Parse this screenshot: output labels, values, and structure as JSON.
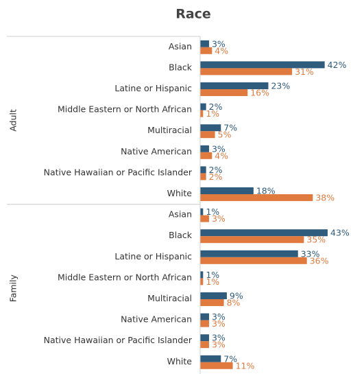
{
  "chart_data": {
    "type": "hbar",
    "title": "Race",
    "groups": [
      {
        "name": "Adult",
        "categories": [
          "Asian",
          "Black",
          "Latine or Hispanic",
          "Middle Eastern or North African",
          "Multiracial",
          "Native American",
          "Native Hawaiian or Pacific Islander",
          "White"
        ],
        "series": [
          {
            "color": "#2f5b7c",
            "values": [
              3,
              42,
              23,
              2,
              7,
              3,
              2,
              18
            ],
            "value_labels": [
              "3%",
              "42%",
              "23%",
              "2%",
              "7%",
              "3%",
              "2%",
              "18%"
            ]
          },
          {
            "color": "#e07a3f",
            "values": [
              4,
              31,
              16,
              1,
              5,
              4,
              2,
              38
            ],
            "value_labels": [
              "4%",
              "31%",
              "16%",
              "1%",
              "5%",
              "4%",
              "2%",
              "38%"
            ]
          }
        ]
      },
      {
        "name": "Family",
        "categories": [
          "Asian",
          "Black",
          "Latine or Hispanic",
          "Middle Eastern or North African",
          "Multiracial",
          "Native American",
          "Native Hawaiian or Pacific Islander",
          "White"
        ],
        "series": [
          {
            "color": "#2f5b7c",
            "values": [
              1,
              43,
              33,
              1,
              9,
              3,
              3,
              7
            ],
            "value_labels": [
              "1%",
              "43%",
              "33%",
              "1%",
              "9%",
              "3%",
              "3%",
              "7%"
            ]
          },
          {
            "color": "#e07a3f",
            "values": [
              3,
              35,
              36,
              1,
              8,
              3,
              3,
              11
            ],
            "value_labels": [
              "3%",
              "35%",
              "36%",
              "1%",
              "8%",
              "3%",
              "3%",
              "11%"
            ]
          }
        ]
      }
    ]
  }
}
